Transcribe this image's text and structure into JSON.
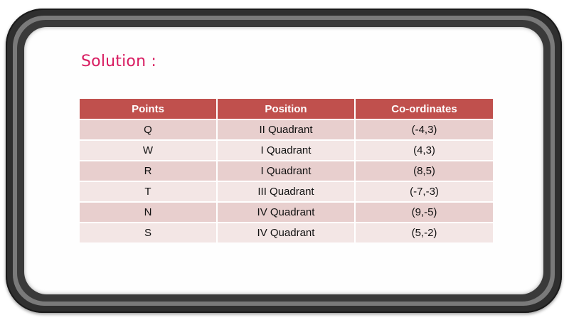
{
  "heading": "Solution :",
  "table": {
    "headers": [
      "Points",
      "Position",
      "Co-ordinates"
    ],
    "rows": [
      [
        "Q",
        "II Quadrant",
        "(-4,3)"
      ],
      [
        "W",
        "I Quadrant",
        "(4,3)"
      ],
      [
        "R",
        "I Quadrant",
        "(8,5)"
      ],
      [
        "T",
        "III Quadrant",
        "(-7,-3)"
      ],
      [
        "N",
        "IV Quadrant",
        "(9,-5)"
      ],
      [
        "S",
        "IV Quadrant",
        "(5,-2)"
      ]
    ]
  },
  "colors": {
    "heading": "#d81b60",
    "header_bg": "#c0504d",
    "row_odd": "#e8cfce",
    "row_even": "#f3e6e5"
  }
}
